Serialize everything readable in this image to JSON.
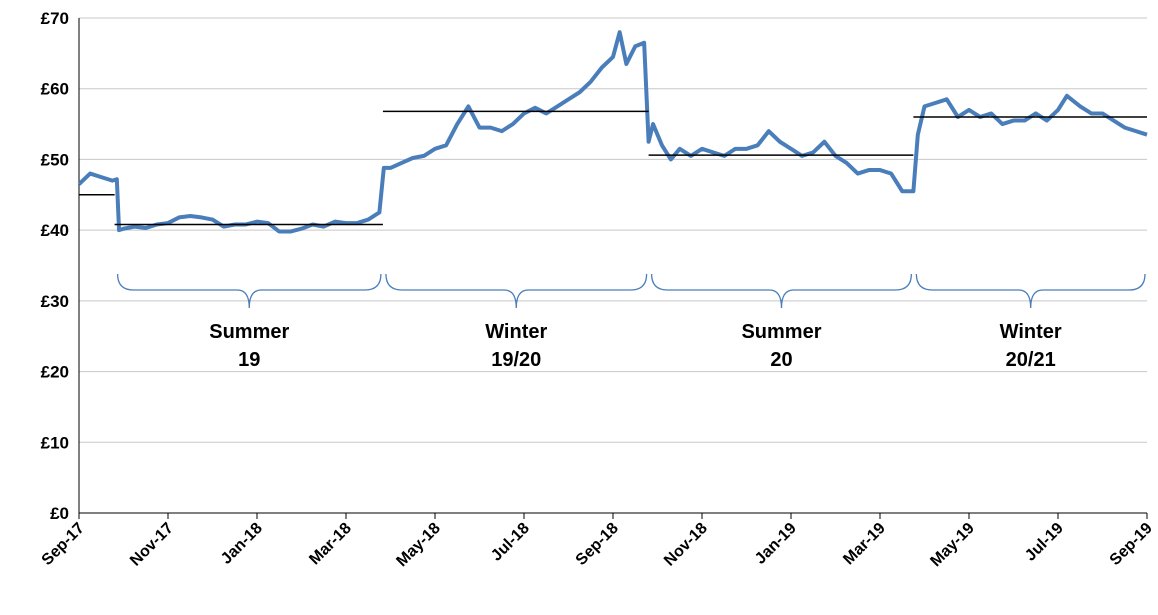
{
  "chart_data": {
    "type": "line",
    "x": [
      0,
      0.25,
      0.5,
      0.75,
      0.85,
      0.9,
      1,
      1.25,
      1.5,
      1.75,
      2,
      2.25,
      2.5,
      2.75,
      3,
      3.25,
      3.5,
      3.75,
      4,
      4.25,
      4.5,
      4.75,
      5,
      5.25,
      5.5,
      5.75,
      6,
      6.25,
      6.5,
      6.75,
      6.85,
      7,
      7.25,
      7.5,
      7.75,
      8,
      8.25,
      8.5,
      8.75,
      9,
      9.25,
      9.5,
      9.75,
      10,
      10.25,
      10.5,
      10.75,
      11,
      11.25,
      11.5,
      11.75,
      12,
      12.15,
      12.3,
      12.5,
      12.7,
      12.8,
      12.9,
      13.1,
      13.3,
      13.5,
      13.75,
      14,
      14.25,
      14.5,
      14.75,
      15,
      15.25,
      15.5,
      15.75,
      16,
      16.25,
      16.5,
      16.75,
      17,
      17.25,
      17.5,
      17.75,
      18,
      18.25,
      18.5,
      18.75,
      18.85,
      19,
      19.25,
      19.5,
      19.75,
      20,
      20.25,
      20.5,
      20.75,
      21,
      21.25,
      21.5,
      21.75,
      22,
      22.2,
      22.5,
      22.75,
      23,
      23.25,
      23.5,
      23.75,
      24
    ],
    "series": [
      {
        "color": "#4a7ebb",
        "values": [
          46.5,
          48,
          47.5,
          47,
          47.2,
          40,
          40.2,
          40.5,
          40.3,
          40.8,
          41,
          41.8,
          42,
          41.8,
          41.5,
          40.5,
          40.8,
          40.8,
          41.2,
          41,
          39.8,
          39.8,
          40.2,
          40.8,
          40.5,
          41.2,
          41,
          41,
          41.5,
          42.5,
          48.8,
          48.8,
          49.5,
          50.2,
          50.5,
          51.5,
          52,
          55,
          57.5,
          54.5,
          54.5,
          54,
          55,
          56.5,
          57.3,
          56.5,
          57.5,
          58.5,
          59.5,
          61,
          63,
          64.5,
          68,
          63.5,
          66,
          66.5,
          52.5,
          55,
          52,
          50,
          51.5,
          50.5,
          51.5,
          51,
          50.5,
          51.5,
          51.5,
          52,
          54,
          52.5,
          51.5,
          50.5,
          51,
          52.5,
          50.5,
          49.5,
          48,
          48.5,
          48.5,
          48,
          45.5,
          45.5,
          53.5,
          57.5,
          58,
          58.5,
          56,
          57,
          56,
          56.5,
          55,
          55.5,
          55.5,
          56.5,
          55.5,
          57,
          59,
          57.5,
          56.5,
          56.5,
          55.5,
          54.5,
          54,
          53.5
        ]
      }
    ],
    "periods": [
      {
        "start": 0,
        "end": 0.8,
        "average": 45
      },
      {
        "start": 0.8,
        "end": 6.83,
        "average": 40.8,
        "label": [
          "Summer",
          "19"
        ]
      },
      {
        "start": 6.83,
        "end": 12.8,
        "average": 56.8,
        "label": [
          "Winter",
          "19/20"
        ]
      },
      {
        "start": 12.8,
        "end": 18.75,
        "average": 50.6,
        "label": [
          "Summer",
          "20"
        ]
      },
      {
        "start": 18.75,
        "end": 24,
        "average": 56,
        "label": [
          "Winter",
          "20/21"
        ]
      }
    ],
    "xlim": [
      0,
      24
    ],
    "xticks": [
      {
        "value": 0,
        "label": "Sep-17"
      },
      {
        "value": 2,
        "label": "Nov-17"
      },
      {
        "value": 4,
        "label": "Jan-18"
      },
      {
        "value": 6,
        "label": "Mar-18"
      },
      {
        "value": 8,
        "label": "May-18"
      },
      {
        "value": 10,
        "label": "Jul-18"
      },
      {
        "value": 12,
        "label": "Sep-18"
      },
      {
        "value": 14,
        "label": "Nov-18"
      },
      {
        "value": 16,
        "label": "Jan-19"
      },
      {
        "value": 18,
        "label": "Mar-19"
      },
      {
        "value": 20,
        "label": "May-19"
      },
      {
        "value": 22,
        "label": "Jul-19"
      },
      {
        "value": 24,
        "label": "Sep-19"
      }
    ],
    "ylim": [
      0,
      70
    ],
    "yticks": [
      {
        "value": 0,
        "label": "£0"
      },
      {
        "value": 10,
        "label": "£10"
      },
      {
        "value": 20,
        "label": "£20"
      },
      {
        "value": 30,
        "label": "£30"
      },
      {
        "value": 40,
        "label": "£40"
      },
      {
        "value": 50,
        "label": "£50"
      },
      {
        "value": 60,
        "label": "£60"
      },
      {
        "value": 70,
        "label": "£70"
      }
    ],
    "grid": true
  }
}
